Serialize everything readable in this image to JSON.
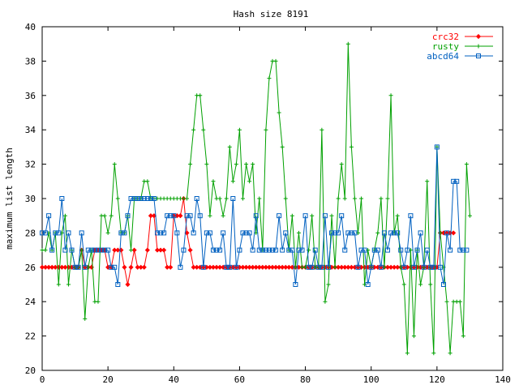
{
  "chart_data": {
    "type": "line",
    "title": "Hash size 8191",
    "xlabel": "",
    "ylabel": "maximum list length",
    "xlim": [
      0,
      140
    ],
    "ylim": [
      20,
      40
    ],
    "xticks": [
      0,
      20,
      40,
      60,
      80,
      100,
      120,
      140
    ],
    "yticks": [
      20,
      22,
      24,
      26,
      28,
      30,
      32,
      34,
      36,
      38,
      40
    ],
    "grid": false,
    "legend_position": "top-right",
    "series": [
      {
        "name": "crc32",
        "color": "#ff0000",
        "marker": "diamond",
        "values": [
          26,
          26,
          26,
          26,
          26,
          26,
          26,
          26,
          26,
          26,
          26,
          26,
          27,
          26,
          26,
          26,
          27,
          27,
          27,
          27,
          26,
          26,
          27,
          27,
          27,
          26,
          25,
          26,
          27,
          26,
          26,
          26,
          27,
          29,
          29,
          27,
          27,
          27,
          26,
          26,
          29,
          29,
          29,
          30,
          28,
          27,
          26,
          26,
          26,
          26,
          26,
          26,
          26,
          26,
          26,
          26,
          26,
          26,
          26,
          26,
          26,
          26,
          26,
          26,
          26,
          26,
          26,
          26,
          26,
          26,
          26,
          26,
          26,
          26,
          26,
          26,
          26,
          26,
          26,
          26,
          26,
          26,
          26,
          26,
          26,
          26,
          26,
          26,
          26,
          26,
          26,
          26,
          26,
          26,
          26,
          26,
          26,
          26,
          26,
          26,
          26,
          26,
          26,
          26,
          26,
          26,
          26,
          26,
          26,
          26,
          26,
          26,
          26,
          26,
          26,
          26,
          26,
          26,
          26,
          26,
          26,
          28,
          28,
          28,
          28,
          28
        ]
      },
      {
        "name": "rusty",
        "color": "#00a000",
        "marker": "plus",
        "values": [
          27,
          27,
          28,
          27,
          28,
          25,
          28,
          29,
          25,
          27,
          26,
          26,
          27,
          23,
          26,
          27,
          24,
          24,
          29,
          29,
          28,
          29,
          32,
          30,
          28,
          28,
          29,
          27,
          30,
          30,
          30,
          31,
          31,
          30,
          30,
          30,
          30,
          30,
          30,
          30,
          30,
          30,
          30,
          30,
          30,
          32,
          34,
          36,
          36,
          34,
          32,
          29,
          31,
          30,
          30,
          29,
          30,
          33,
          31,
          32,
          34,
          30,
          32,
          31,
          32,
          28,
          30,
          27,
          34,
          37,
          38,
          38,
          35,
          33,
          30,
          27,
          29,
          26,
          28,
          26,
          26,
          27,
          29,
          26,
          26,
          34,
          24,
          25,
          29,
          26,
          30,
          32,
          30,
          39,
          33,
          30,
          28,
          30,
          25,
          27,
          26,
          27,
          28,
          30,
          26,
          30,
          36,
          28,
          29,
          26,
          25,
          21,
          27,
          22,
          27,
          25,
          26,
          31,
          25,
          21,
          33,
          28,
          26,
          24,
          21,
          24,
          24,
          24,
          22,
          32,
          29
        ]
      },
      {
        "name": "abcd64",
        "color": "#0060c0",
        "marker": "square",
        "values": [
          28,
          28,
          29,
          27,
          28,
          28,
          30,
          27,
          28,
          27,
          26,
          26,
          28,
          26,
          27,
          27,
          27,
          27,
          27,
          27,
          27,
          26,
          26,
          25,
          28,
          28,
          29,
          30,
          30,
          30,
          30,
          30,
          30,
          30,
          30,
          28,
          28,
          28,
          29,
          29,
          29,
          28,
          26,
          27,
          29,
          29,
          28,
          30,
          29,
          26,
          28,
          28,
          27,
          27,
          27,
          28,
          26,
          26,
          30,
          26,
          27,
          28,
          28,
          28,
          27,
          29,
          27,
          27,
          27,
          27,
          27,
          27,
          29,
          27,
          28,
          27,
          27,
          25,
          27,
          27,
          29,
          26,
          26,
          27,
          26,
          26,
          29,
          26,
          28,
          28,
          28,
          29,
          27,
          28,
          28,
          28,
          26,
          27,
          27,
          25,
          26,
          27,
          27,
          26,
          28,
          27,
          28,
          28,
          28,
          27,
          26,
          27,
          29,
          26,
          27,
          28,
          26,
          27,
          26,
          26,
          33,
          26,
          25,
          28,
          27,
          31,
          31,
          27,
          27,
          27
        ]
      }
    ]
  }
}
